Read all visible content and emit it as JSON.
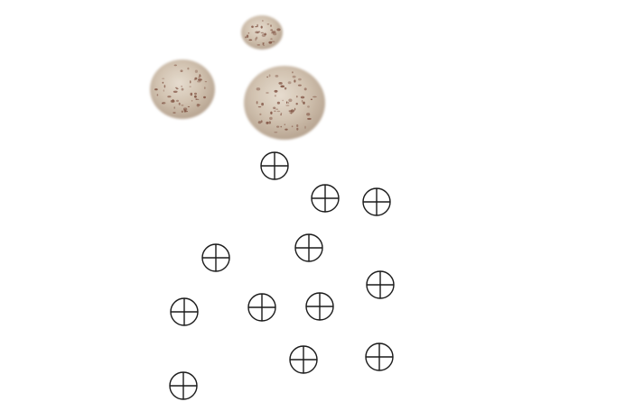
{
  "scene": {
    "background_color": "#ffffff",
    "object_color": "#cbbcaa",
    "speckle_color": "#7a4a3a",
    "marker_color": "#1a1a1a"
  },
  "eggs": [
    {
      "id": "small-egg",
      "icon": "speckled-egg"
    },
    {
      "id": "left-egg",
      "icon": "speckled-egg"
    },
    {
      "id": "large-egg",
      "icon": "speckled-egg"
    }
  ],
  "markers": [
    {
      "icon": "crosshair-circle"
    },
    {
      "icon": "crosshair-circle"
    },
    {
      "icon": "crosshair-circle"
    },
    {
      "icon": "crosshair-circle"
    },
    {
      "icon": "crosshair-circle"
    },
    {
      "icon": "crosshair-circle"
    },
    {
      "icon": "crosshair-circle"
    },
    {
      "icon": "crosshair-circle"
    },
    {
      "icon": "crosshair-circle"
    },
    {
      "icon": "crosshair-circle"
    },
    {
      "icon": "crosshair-circle"
    },
    {
      "icon": "crosshair-circle"
    },
    {
      "icon": "crosshair-circle"
    }
  ]
}
